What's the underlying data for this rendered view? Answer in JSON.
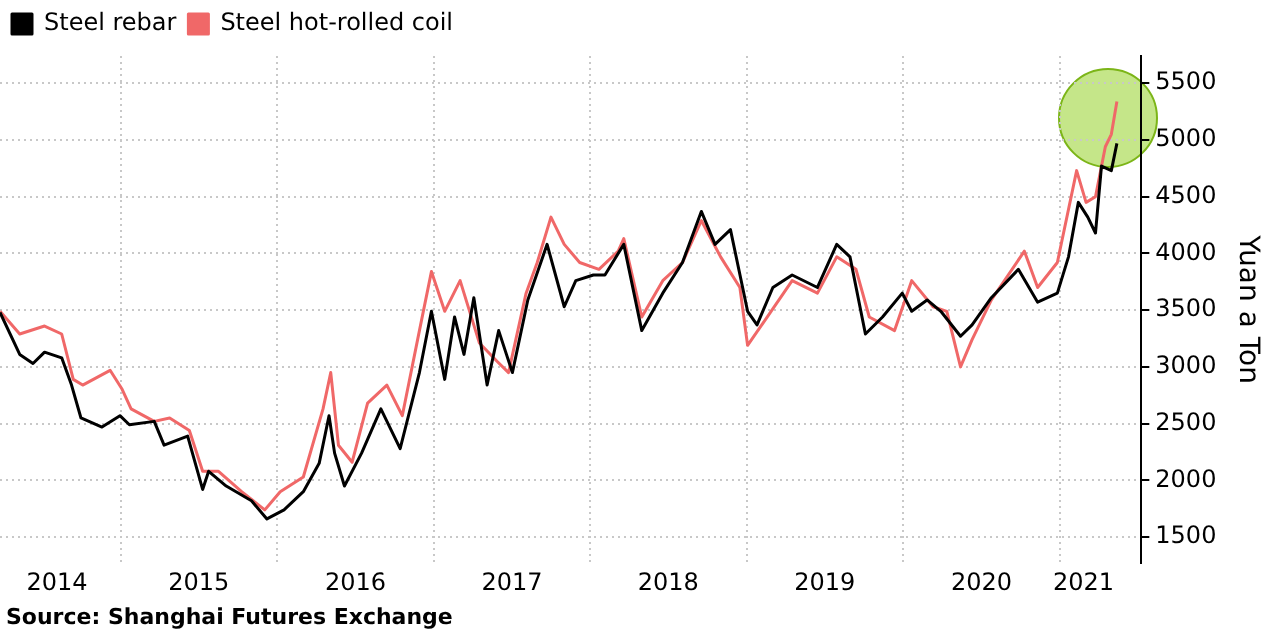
{
  "chart_data": {
    "type": "line",
    "ylabel": "Yuan a Ton",
    "annotations": [
      "Source: Shanghai Futures Exchange"
    ],
    "xlim": [
      "2014-03-25",
      "2021-07-10"
    ],
    "xticks": [
      {
        "value": "2014-08-05",
        "label": "2014"
      },
      {
        "value": "2015-01-01",
        "label": null
      },
      {
        "value": "2015-07-02",
        "label": "2015"
      },
      {
        "value": "2016-01-01",
        "label": null
      },
      {
        "value": "2016-07-02",
        "label": "2016"
      },
      {
        "value": "2017-01-01",
        "label": null
      },
      {
        "value": "2017-07-02",
        "label": "2017"
      },
      {
        "value": "2018-01-01",
        "label": null
      },
      {
        "value": "2018-07-02",
        "label": "2018"
      },
      {
        "value": "2019-01-01",
        "label": null
      },
      {
        "value": "2019-07-02",
        "label": "2019"
      },
      {
        "value": "2020-01-01",
        "label": null
      },
      {
        "value": "2020-07-02",
        "label": "2020"
      },
      {
        "value": "2021-01-01",
        "label": null
      },
      {
        "value": "2021-02-25",
        "label": "2021"
      }
    ],
    "ylim": [
      1270,
      5740
    ],
    "yticks": [
      1500,
      2000,
      2500,
      3000,
      3500,
      4000,
      4500,
      5000,
      5500
    ],
    "grid": true,
    "legend": "top left",
    "marker": "none",
    "line_style": "solid",
    "series": [
      {
        "name": "Steel rebar",
        "color": "#000000",
        "x": [
          "2014-03-25",
          "2014-05-10",
          "2014-06-10",
          "2014-07-07",
          "2014-08-16",
          "2014-09-08",
          "2014-09-30",
          "2014-11-18",
          "2014-12-30",
          "2015-01-21",
          "2015-03-20",
          "2015-04-12",
          "2015-06-06",
          "2015-07-11",
          "2015-07-25",
          "2015-09-04",
          "2015-11-02",
          "2015-12-08",
          "2016-01-17",
          "2016-03-02",
          "2016-04-08",
          "2016-05-01",
          "2016-05-14",
          "2016-06-06",
          "2016-07-16",
          "2016-08-30",
          "2016-10-14",
          "2016-11-28",
          "2016-12-26",
          "2017-01-26",
          "2017-02-18",
          "2017-03-12",
          "2017-04-04",
          "2017-05-05",
          "2017-06-01",
          "2017-07-03",
          "2017-08-08",
          "2017-09-22",
          "2017-11-01",
          "2017-11-28",
          "2018-01-08",
          "2018-02-04",
          "2018-03-20",
          "2018-05-01",
          "2018-06-19",
          "2018-08-04",
          "2018-09-17",
          "2018-10-19",
          "2018-11-24",
          "2019-01-03",
          "2019-01-25",
          "2019-03-03",
          "2019-04-17",
          "2019-06-15",
          "2019-07-30",
          "2019-08-30",
          "2019-10-05",
          "2019-11-14",
          "2019-12-30",
          "2020-01-21",
          "2020-02-26",
          "2020-03-29",
          "2020-05-14",
          "2020-06-10",
          "2020-07-25",
          "2020-09-26",
          "2020-11-10",
          "2020-12-26",
          "2021-01-21",
          "2021-02-13",
          "2021-03-07",
          "2021-03-25",
          "2021-04-08",
          "2021-05-01",
          "2021-05-14"
        ],
        "values": [
          3480,
          3110,
          3030,
          3130,
          3080,
          2840,
          2550,
          2470,
          2570,
          2490,
          2520,
          2310,
          2390,
          1920,
          2080,
          1950,
          1820,
          1660,
          1740,
          1900,
          2150,
          2570,
          2240,
          1950,
          2240,
          2630,
          2280,
          2950,
          3490,
          2890,
          3440,
          3110,
          3610,
          2840,
          3320,
          2950,
          3590,
          4080,
          3530,
          3760,
          3810,
          3810,
          4080,
          3320,
          3650,
          3920,
          4370,
          4080,
          4210,
          3490,
          3370,
          3700,
          3810,
          3700,
          4080,
          3970,
          3290,
          3440,
          3650,
          3490,
          3590,
          3490,
          3270,
          3370,
          3610,
          3860,
          3570,
          3650,
          3970,
          4450,
          4320,
          4180,
          4770,
          4730,
          4970
        ]
      },
      {
        "name": "Steel hot-rolled coil",
        "color": "#f06868",
        "x": [
          "2014-03-25",
          "2014-05-10",
          "2014-07-07",
          "2014-08-16",
          "2014-09-12",
          "2014-10-04",
          "2014-12-07",
          "2015-01-03",
          "2015-01-25",
          "2015-03-20",
          "2015-04-25",
          "2015-06-10",
          "2015-07-11",
          "2015-08-17",
          "2015-10-10",
          "2015-12-03",
          "2016-01-08",
          "2016-03-02",
          "2016-04-17",
          "2016-05-05",
          "2016-05-23",
          "2016-06-24",
          "2016-07-30",
          "2016-09-13",
          "2016-10-19",
          "2016-11-28",
          "2016-12-26",
          "2017-01-26",
          "2017-03-03",
          "2017-04-17",
          "2017-05-28",
          "2017-06-24",
          "2017-08-04",
          "2017-08-30",
          "2017-10-01",
          "2017-11-01",
          "2017-12-07",
          "2018-01-21",
          "2018-03-07",
          "2018-03-20",
          "2018-05-01",
          "2018-06-19",
          "2018-08-04",
          "2018-09-17",
          "2018-11-01",
          "2018-12-16",
          "2019-01-03",
          "2019-02-18",
          "2019-04-17",
          "2019-06-15",
          "2019-07-30",
          "2019-09-13",
          "2019-10-14",
          "2019-12-12",
          "2020-01-21",
          "2020-03-11",
          "2020-04-12",
          "2020-05-14",
          "2020-06-10",
          "2020-07-25",
          "2020-10-10",
          "2020-11-10",
          "2020-12-26",
          "2021-02-09",
          "2021-03-03",
          "2021-03-25",
          "2021-04-17",
          "2021-05-01",
          "2021-05-14"
        ],
        "values": [
          3490,
          3290,
          3360,
          3290,
          2890,
          2840,
          2970,
          2810,
          2630,
          2520,
          2550,
          2440,
          2080,
          2080,
          1900,
          1740,
          1900,
          2030,
          2630,
          2950,
          2310,
          2160,
          2680,
          2840,
          2570,
          3320,
          3840,
          3490,
          3760,
          3210,
          3050,
          2950,
          3650,
          3920,
          4320,
          4080,
          3920,
          3860,
          4020,
          4130,
          3440,
          3760,
          3920,
          4290,
          3970,
          3700,
          3190,
          3440,
          3760,
          3650,
          3970,
          3860,
          3440,
          3320,
          3760,
          3530,
          3490,
          3000,
          3240,
          3590,
          4020,
          3700,
          3920,
          4730,
          4450,
          4500,
          4940,
          5050,
          5340
        ]
      }
    ]
  }
}
